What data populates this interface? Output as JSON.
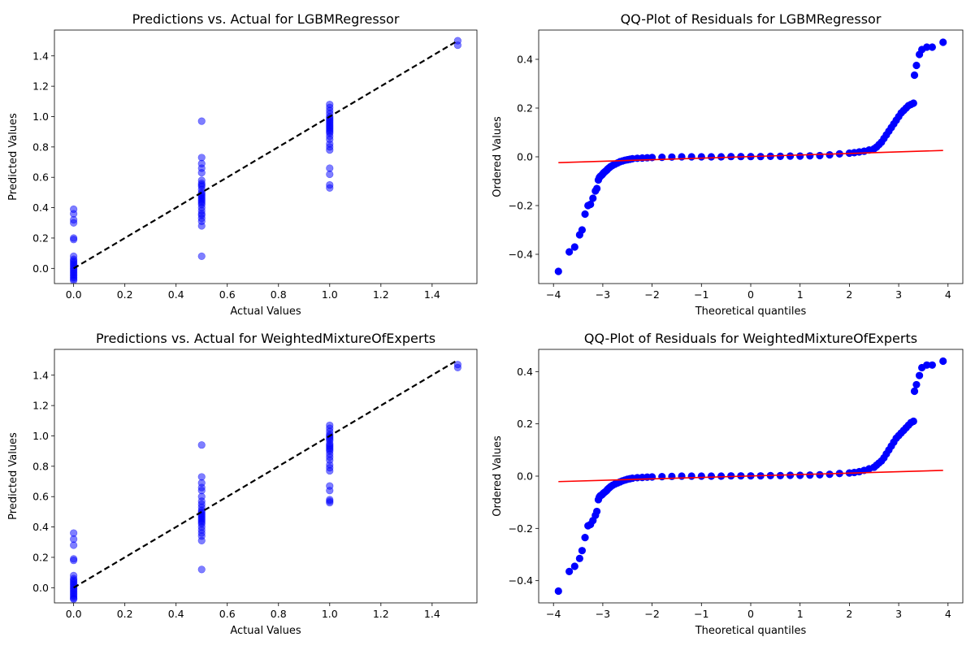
{
  "chart_data": [
    {
      "type": "scatter",
      "title": "Predictions vs. Actual for LGBMRegressor",
      "xlabel": "Actual Values",
      "ylabel": "Predicted Values",
      "xlim": [
        -0.075,
        1.575
      ],
      "ylim": [
        -0.1,
        1.57
      ],
      "xticks": [
        0.0,
        0.2,
        0.4,
        0.6,
        0.8,
        1.0,
        1.2,
        1.4
      ],
      "yticks": [
        0.0,
        0.2,
        0.4,
        0.6,
        0.8,
        1.0,
        1.2,
        1.4
      ],
      "tick_labels_x": [
        "0.0",
        "0.2",
        "0.4",
        "0.6",
        "0.8",
        "1.0",
        "1.2",
        "1.4"
      ],
      "tick_labels_y": [
        "0.0",
        "0.2",
        "0.4",
        "0.6",
        "0.8",
        "1.0",
        "1.2",
        "1.4"
      ],
      "colors": {
        "points": "#0000ff",
        "reference_line": "#000000"
      },
      "reference_line": {
        "x": [
          0,
          1.5
        ],
        "y": [
          0,
          1.5
        ],
        "style": "dashed"
      },
      "series": [
        {
          "x": [
            0,
            0,
            0,
            0,
            0,
            0,
            0,
            0,
            0,
            0,
            0,
            0,
            0,
            0,
            0,
            0,
            0,
            0,
            0,
            0,
            0,
            0,
            0.5,
            0.5,
            0.5,
            0.5,
            0.5,
            0.5,
            0.5,
            0.5,
            0.5,
            0.5,
            0.5,
            0.5,
            0.5,
            0.5,
            0.5,
            0.5,
            0.5,
            0.5,
            0.5,
            0.5,
            0.5,
            0.5,
            0.5,
            0.5,
            0.5,
            0.5,
            0.5,
            1,
            1,
            1,
            1,
            1,
            1,
            1,
            1,
            1,
            1,
            1,
            1,
            1,
            1,
            1,
            1,
            1,
            1,
            1,
            1,
            1,
            1,
            1,
            1,
            1,
            1.5,
            1.5
          ],
          "y": [
            0.39,
            0.36,
            0.32,
            0.3,
            0.2,
            0.19,
            0.08,
            0.06,
            0.05,
            0.04,
            0.03,
            0.02,
            0.01,
            0.0,
            -0.01,
            -0.02,
            -0.03,
            -0.04,
            -0.05,
            -0.06,
            -0.07,
            -0.08,
            0.97,
            0.73,
            0.69,
            0.66,
            0.63,
            0.58,
            0.56,
            0.54,
            0.52,
            0.5,
            0.49,
            0.48,
            0.47,
            0.46,
            0.45,
            0.44,
            0.43,
            0.42,
            0.4,
            0.38,
            0.36,
            0.35,
            0.33,
            0.31,
            0.28,
            0.08,
            0.55,
            1.08,
            1.06,
            1.04,
            1.02,
            1.0,
            0.99,
            0.98,
            0.97,
            0.96,
            0.95,
            0.94,
            0.93,
            0.92,
            0.91,
            0.9,
            0.89,
            0.87,
            0.85,
            0.82,
            0.8,
            0.78,
            0.66,
            0.62,
            0.55,
            0.53,
            1.5,
            1.47
          ]
        }
      ]
    },
    {
      "type": "scatter",
      "title": "QQ-Plot of Residuals for LGBMRegressor",
      "xlabel": "Theoretical quantiles",
      "ylabel": "Ordered Values",
      "xlim": [
        -4.3,
        4.3
      ],
      "ylim": [
        -0.52,
        0.52
      ],
      "xticks": [
        -4,
        -3,
        -2,
        -1,
        0,
        1,
        2,
        3,
        4
      ],
      "yticks": [
        -0.4,
        -0.2,
        0.0,
        0.2,
        0.4
      ],
      "tick_labels_x": [
        "−4",
        "−3",
        "−2",
        "−1",
        "0",
        "1",
        "2",
        "3",
        "4"
      ],
      "tick_labels_y": [
        "−0.4",
        "−0.2",
        "0.0",
        "0.2",
        "0.4"
      ],
      "colors": {
        "points": "#0000ff",
        "fit_line": "#ff0000"
      },
      "fit_line": {
        "x": [
          -3.9,
          3.9
        ],
        "y": [
          -0.024,
          0.026
        ]
      },
      "series": [
        {
          "x": [
            -3.9,
            -3.68,
            -3.57,
            -3.47,
            -3.42,
            -3.36,
            -3.3,
            -3.25,
            -3.2,
            -3.15,
            -3.12,
            -3.09,
            -3.07,
            -3.05,
            -3.02,
            -3.0,
            -2.98,
            -2.95,
            -2.92,
            -2.9,
            -2.87,
            -2.84,
            -2.8,
            -2.75,
            -2.7,
            -2.65,
            -2.6,
            -2.55,
            -2.5,
            -2.45,
            -2.4,
            -2.3,
            -2.2,
            -2.1,
            -2.0,
            -1.8,
            -1.6,
            -1.4,
            -1.2,
            -1.0,
            -0.8,
            -0.6,
            -0.4,
            -0.2,
            0.0,
            0.2,
            0.4,
            0.6,
            0.8,
            1.0,
            1.2,
            1.4,
            1.6,
            1.8,
            2.0,
            2.1,
            2.2,
            2.3,
            2.4,
            2.5,
            2.55,
            2.6,
            2.65,
            2.7,
            2.75,
            2.8,
            2.85,
            2.9,
            2.95,
            3.0,
            3.05,
            3.1,
            3.15,
            3.2,
            3.25,
            3.3,
            3.32,
            3.36,
            3.42,
            3.47,
            3.57,
            3.68,
            3.9
          ],
          "y": [
            -0.47,
            -0.39,
            -0.37,
            -0.32,
            -0.3,
            -0.235,
            -0.2,
            -0.195,
            -0.17,
            -0.14,
            -0.13,
            -0.095,
            -0.085,
            -0.08,
            -0.075,
            -0.07,
            -0.065,
            -0.06,
            -0.055,
            -0.05,
            -0.045,
            -0.04,
            -0.035,
            -0.03,
            -0.025,
            -0.02,
            -0.017,
            -0.014,
            -0.012,
            -0.01,
            -0.008,
            -0.006,
            -0.005,
            -0.004,
            -0.003,
            -0.002,
            -0.001,
            0.0,
            0.0,
            0.0,
            0.0,
            0.0,
            0.001,
            0.001,
            0.001,
            0.001,
            0.002,
            0.002,
            0.003,
            0.003,
            0.004,
            0.005,
            0.008,
            0.012,
            0.015,
            0.017,
            0.02,
            0.023,
            0.028,
            0.033,
            0.04,
            0.05,
            0.06,
            0.075,
            0.09,
            0.105,
            0.12,
            0.135,
            0.15,
            0.165,
            0.18,
            0.19,
            0.2,
            0.21,
            0.215,
            0.22,
            0.335,
            0.375,
            0.42,
            0.44,
            0.45,
            0.45,
            0.47
          ]
        }
      ]
    },
    {
      "type": "scatter",
      "title": "Predictions vs. Actual for WeightedMixtureOfExperts",
      "xlabel": "Actual Values",
      "ylabel": "Predicted Values",
      "xlim": [
        -0.075,
        1.575
      ],
      "ylim": [
        -0.1,
        1.57
      ],
      "xticks": [
        0.0,
        0.2,
        0.4,
        0.6,
        0.8,
        1.0,
        1.2,
        1.4
      ],
      "yticks": [
        0.0,
        0.2,
        0.4,
        0.6,
        0.8,
        1.0,
        1.2,
        1.4
      ],
      "tick_labels_x": [
        "0.0",
        "0.2",
        "0.4",
        "0.6",
        "0.8",
        "1.0",
        "1.2",
        "1.4"
      ],
      "tick_labels_y": [
        "0.0",
        "0.2",
        "0.4",
        "0.6",
        "0.8",
        "1.0",
        "1.2",
        "1.4"
      ],
      "colors": {
        "points": "#0000ff",
        "reference_line": "#000000"
      },
      "reference_line": {
        "x": [
          0,
          1.5
        ],
        "y": [
          0,
          1.5
        ],
        "style": "dashed"
      },
      "series": [
        {
          "x": [
            0,
            0,
            0,
            0,
            0,
            0,
            0,
            0,
            0,
            0,
            0,
            0,
            0,
            0,
            0,
            0,
            0,
            0,
            0,
            0,
            0,
            0.5,
            0.5,
            0.5,
            0.5,
            0.5,
            0.5,
            0.5,
            0.5,
            0.5,
            0.5,
            0.5,
            0.5,
            0.5,
            0.5,
            0.5,
            0.5,
            0.5,
            0.5,
            0.5,
            0.5,
            0.5,
            0.5,
            0.5,
            0.5,
            0.5,
            1,
            1,
            1,
            1,
            1,
            1,
            1,
            1,
            1,
            1,
            1,
            1,
            1,
            1,
            1,
            1,
            1,
            1,
            1,
            1,
            1,
            1,
            1,
            1,
            1,
            1.5,
            1.5
          ],
          "y": [
            0.36,
            0.32,
            0.28,
            0.19,
            0.18,
            0.08,
            0.06,
            0.05,
            0.04,
            0.03,
            0.02,
            0.01,
            0.0,
            -0.01,
            -0.02,
            -0.03,
            -0.04,
            -0.05,
            -0.06,
            -0.07,
            -0.075,
            0.94,
            0.73,
            0.69,
            0.66,
            0.64,
            0.6,
            0.57,
            0.55,
            0.53,
            0.51,
            0.5,
            0.49,
            0.48,
            0.47,
            0.46,
            0.45,
            0.44,
            0.43,
            0.42,
            0.4,
            0.38,
            0.36,
            0.34,
            0.31,
            0.12,
            1.07,
            1.05,
            1.03,
            1.01,
            1.0,
            0.99,
            0.98,
            0.97,
            0.95,
            0.94,
            0.93,
            0.92,
            0.91,
            0.9,
            0.88,
            0.86,
            0.84,
            0.81,
            0.79,
            0.77,
            0.67,
            0.64,
            0.58,
            0.57,
            0.56,
            1.47,
            1.45
          ]
        }
      ]
    },
    {
      "type": "scatter",
      "title": "QQ-Plot of Residuals for WeightedMixtureOfExperts",
      "xlabel": "Theoretical quantiles",
      "ylabel": "Ordered Values",
      "xlim": [
        -4.3,
        4.3
      ],
      "ylim": [
        -0.485,
        0.485
      ],
      "xticks": [
        -4,
        -3,
        -2,
        -1,
        0,
        1,
        2,
        3,
        4
      ],
      "yticks": [
        -0.4,
        -0.2,
        0.0,
        0.2,
        0.4
      ],
      "tick_labels_x": [
        "−4",
        "−3",
        "−2",
        "−1",
        "0",
        "1",
        "2",
        "3",
        "4"
      ],
      "tick_labels_y": [
        "−0.4",
        "−0.2",
        "0.0",
        "0.2",
        "0.4"
      ],
      "colors": {
        "points": "#0000ff",
        "fit_line": "#ff0000"
      },
      "fit_line": {
        "x": [
          -3.9,
          3.9
        ],
        "y": [
          -0.021,
          0.022
        ]
      },
      "series": [
        {
          "x": [
            -3.9,
            -3.68,
            -3.57,
            -3.47,
            -3.42,
            -3.36,
            -3.3,
            -3.25,
            -3.2,
            -3.15,
            -3.12,
            -3.09,
            -3.07,
            -3.05,
            -3.02,
            -3.0,
            -2.98,
            -2.95,
            -2.92,
            -2.9,
            -2.87,
            -2.84,
            -2.8,
            -2.75,
            -2.7,
            -2.65,
            -2.6,
            -2.55,
            -2.5,
            -2.45,
            -2.4,
            -2.3,
            -2.2,
            -2.1,
            -2.0,
            -1.8,
            -1.6,
            -1.4,
            -1.2,
            -1.0,
            -0.8,
            -0.6,
            -0.4,
            -0.2,
            0.0,
            0.2,
            0.4,
            0.6,
            0.8,
            1.0,
            1.2,
            1.4,
            1.6,
            1.8,
            2.0,
            2.1,
            2.2,
            2.3,
            2.4,
            2.5,
            2.55,
            2.6,
            2.65,
            2.7,
            2.75,
            2.8,
            2.85,
            2.9,
            2.95,
            3.0,
            3.05,
            3.1,
            3.15,
            3.2,
            3.25,
            3.3,
            3.32,
            3.36,
            3.42,
            3.47,
            3.57,
            3.68,
            3.9
          ],
          "y": [
            -0.44,
            -0.365,
            -0.345,
            -0.315,
            -0.285,
            -0.235,
            -0.19,
            -0.185,
            -0.17,
            -0.15,
            -0.135,
            -0.09,
            -0.08,
            -0.075,
            -0.072,
            -0.068,
            -0.064,
            -0.06,
            -0.055,
            -0.05,
            -0.045,
            -0.04,
            -0.035,
            -0.03,
            -0.026,
            -0.022,
            -0.018,
            -0.015,
            -0.012,
            -0.01,
            -0.008,
            -0.006,
            -0.005,
            -0.004,
            -0.003,
            -0.002,
            -0.001,
            0.0,
            0.0,
            0.0,
            0.0,
            0.0,
            0.001,
            0.001,
            0.001,
            0.001,
            0.002,
            0.002,
            0.003,
            0.003,
            0.004,
            0.005,
            0.007,
            0.01,
            0.012,
            0.014,
            0.017,
            0.022,
            0.028,
            0.034,
            0.042,
            0.05,
            0.058,
            0.07,
            0.085,
            0.1,
            0.115,
            0.13,
            0.145,
            0.155,
            0.165,
            0.175,
            0.185,
            0.195,
            0.205,
            0.21,
            0.325,
            0.35,
            0.385,
            0.415,
            0.425,
            0.425,
            0.44
          ]
        }
      ]
    }
  ]
}
